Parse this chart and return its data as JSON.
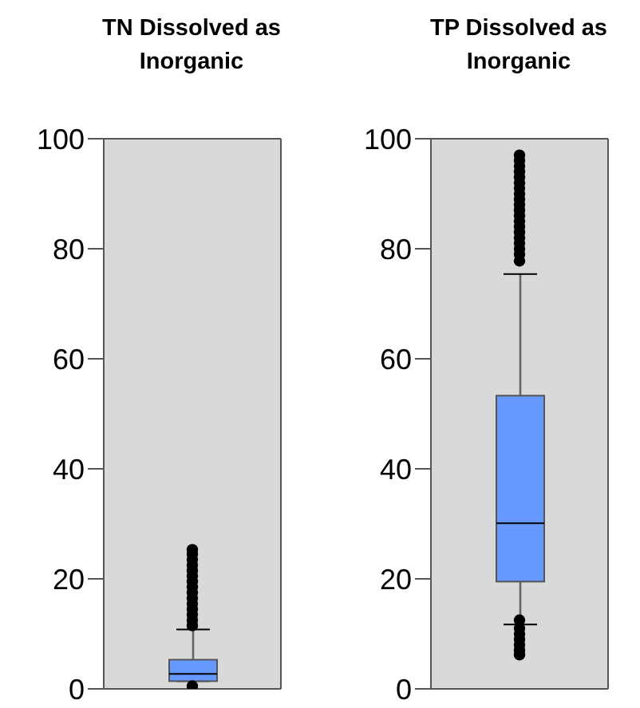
{
  "chart_data": [
    {
      "type": "box",
      "title": "TN Dissolved as Inorganic",
      "categories": [
        null
      ],
      "color": "#6699ff",
      "ylim": [
        0,
        100
      ],
      "yticks": [
        0,
        20,
        40,
        60,
        80,
        100
      ],
      "tick_labels": "y",
      "marker": "circle",
      "boxes": [
        {
          "low": 1.4,
          "q1": 1.4,
          "median": 2.7,
          "q3": 5.3,
          "high": 10.8,
          "outliers": [
            0.5,
            11.5,
            12.5,
            13.5,
            14.5,
            15.5,
            16.5,
            17.5,
            18.5,
            19.5,
            20.5,
            21.5,
            22.5,
            23.5,
            24.5,
            25.3
          ]
        }
      ]
    },
    {
      "type": "box",
      "title": "TP Dissolved as Inorganic",
      "categories": [
        null
      ],
      "color": "#6699ff",
      "ylim": [
        0,
        100
      ],
      "yticks": [
        0,
        20,
        40,
        60,
        80,
        100
      ],
      "tick_labels": "y",
      "marker": "circle",
      "boxes": [
        {
          "low": 11.7,
          "q1": 19.5,
          "median": 30.1,
          "q3": 53.3,
          "high": 75.4,
          "outliers": [
            6.2,
            7,
            8,
            9,
            10,
            11,
            12.5,
            77.8,
            79,
            80,
            81,
            82,
            83,
            84,
            85,
            86,
            87,
            88,
            89,
            90,
            91,
            92,
            93,
            94,
            95,
            96,
            97
          ]
        }
      ]
    }
  ]
}
